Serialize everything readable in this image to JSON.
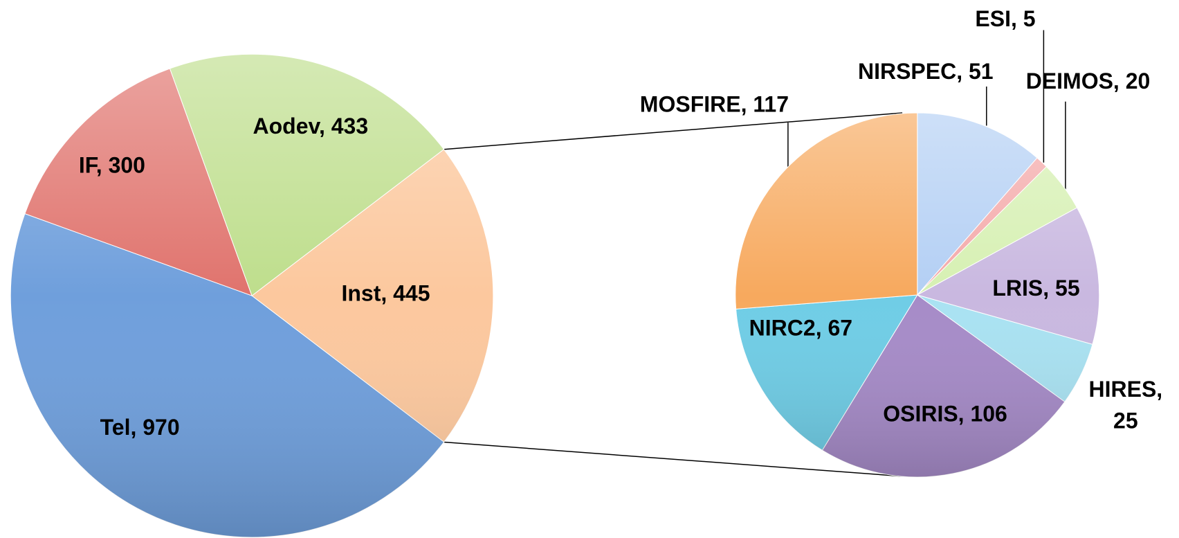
{
  "chart_data": [
    {
      "type": "pie",
      "values": [
        445,
        970,
        300,
        433
      ],
      "value_labels": [
        "Inst, 445",
        "Tel, 970",
        "IF, 300",
        "Aodev, 433"
      ],
      "colors": [
        "#fcc89e",
        "#6f9fdc",
        "#e0736d",
        "#bede8c"
      ]
    },
    {
      "type": "pie",
      "values": [
        51,
        5,
        20,
        55,
        25,
        106,
        67,
        117
      ],
      "value_labels": [
        "NIRSPEC, 51",
        "ESI, 5",
        "DEIMOS, 20",
        "LRIS, 55",
        "HIRES, 25",
        "OSIRIS, 106",
        "NIRC2, 67",
        "MOSFIRE, 117"
      ],
      "colors": [
        "#b3cff4",
        "#f4a9a9",
        "#d6f0b2",
        "#c9b8e0",
        "#a9e2f2",
        "#a68bc8",
        "#6fcde6",
        "#f7a95e"
      ]
    }
  ]
}
